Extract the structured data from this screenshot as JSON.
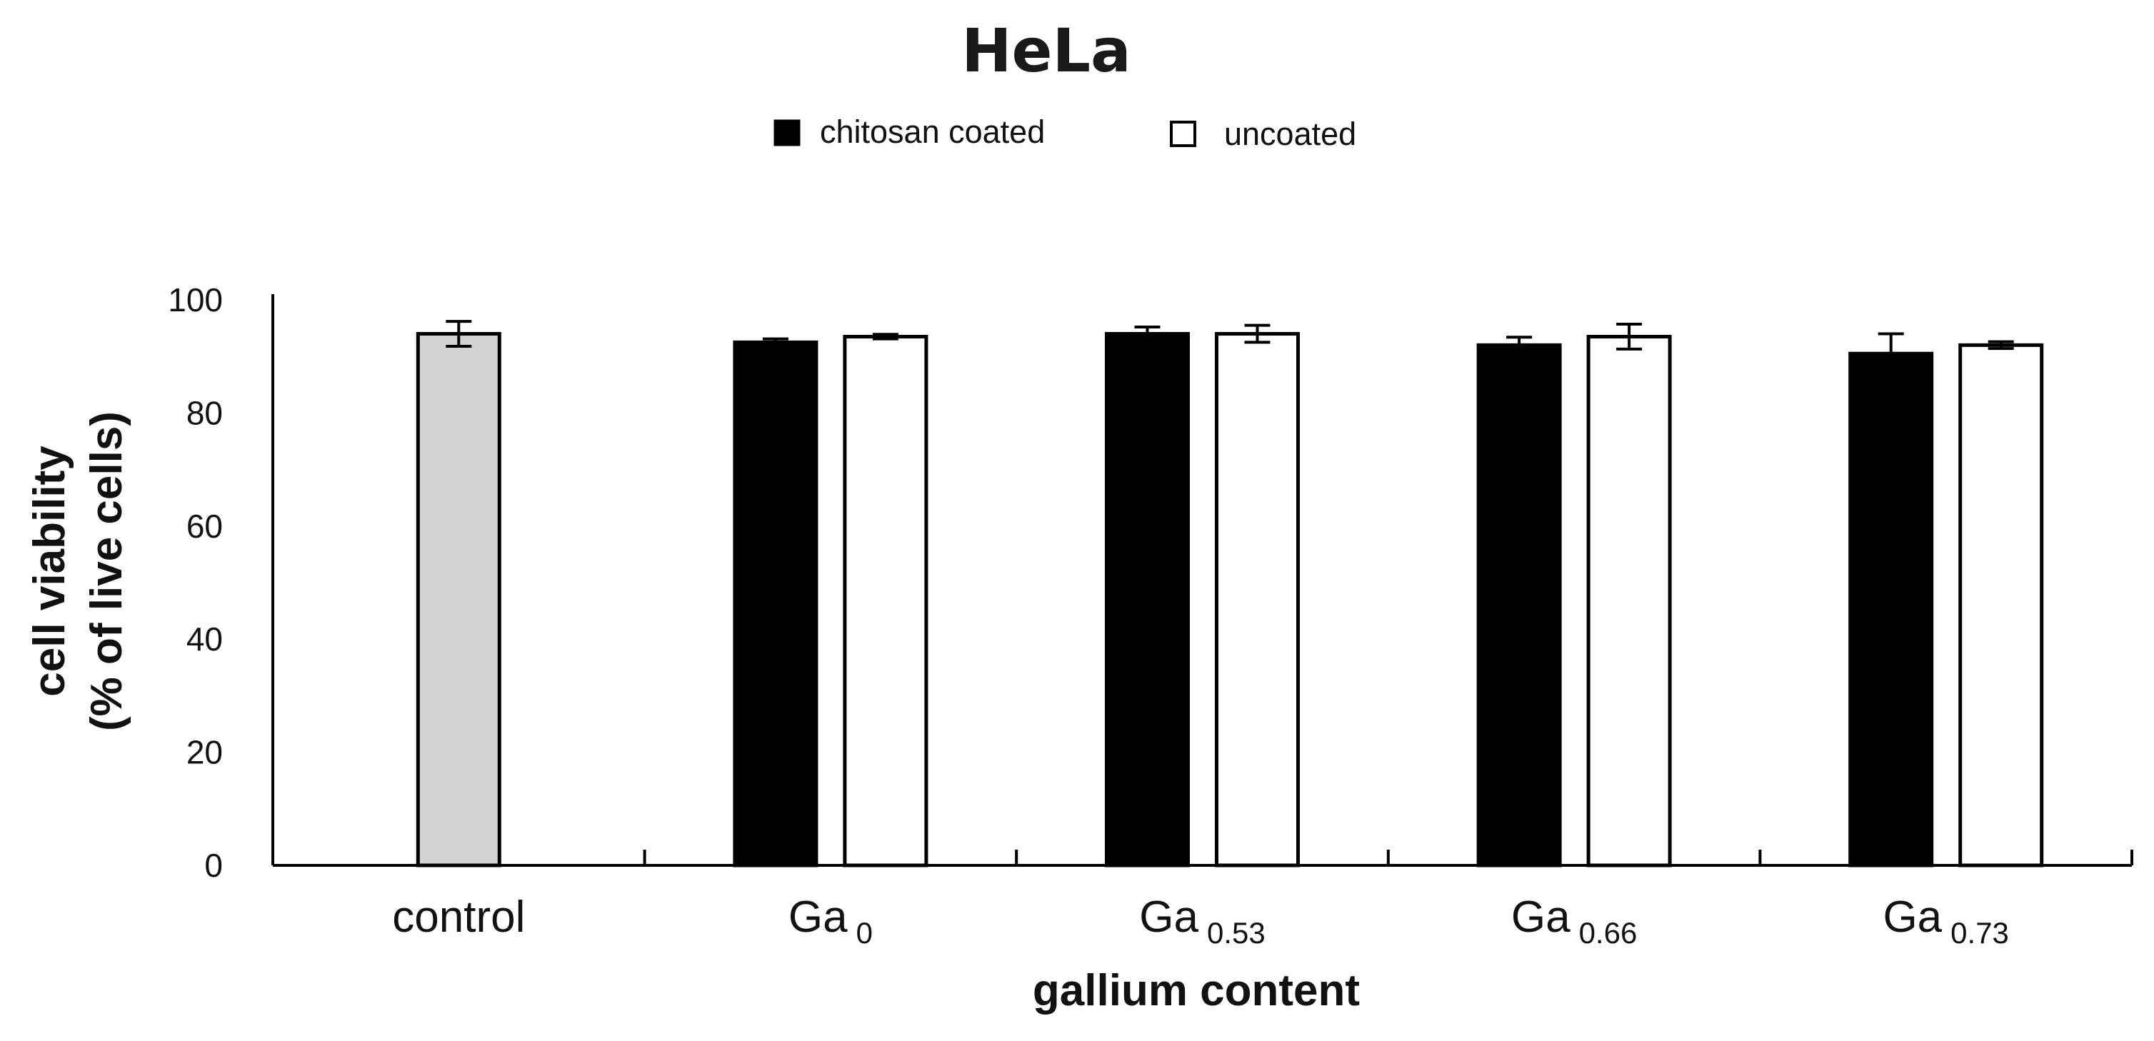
{
  "chart_data": {
    "type": "bar",
    "title": "HeLa",
    "xlabel": "gallium content",
    "ylabel_lines": [
      "cell viability",
      "(% of live cells)"
    ],
    "ylim": [
      0,
      100
    ],
    "yticks": [
      0,
      20,
      40,
      60,
      80,
      100
    ],
    "categories": [
      {
        "base": "control",
        "sub": ""
      },
      {
        "base": "Ga",
        "sub": "0"
      },
      {
        "base": "Ga",
        "sub": "0.53"
      },
      {
        "base": "Ga",
        "sub": "0.66"
      },
      {
        "base": "Ga",
        "sub": "0.73"
      }
    ],
    "legend": {
      "position": "top-center",
      "entries": [
        {
          "name": "chitosan coated",
          "color": "#000000"
        },
        {
          "name": "uncoated",
          "color": "#ffffff"
        }
      ]
    },
    "control": {
      "value": 94,
      "error": 2.2,
      "color": "#d3d3d3"
    },
    "series": [
      {
        "name": "chitosan coated",
        "color": "#000000",
        "values": [
          null,
          92.5,
          94,
          92,
          90.5
        ],
        "errors": [
          null,
          0.6,
          1.2,
          1.4,
          3.5
        ]
      },
      {
        "name": "uncoated",
        "color": "#ffffff",
        "values": [
          null,
          93.5,
          94,
          93.5,
          92
        ],
        "errors": [
          null,
          0.4,
          1.5,
          2.2,
          0.6
        ]
      }
    ],
    "grid": false
  }
}
